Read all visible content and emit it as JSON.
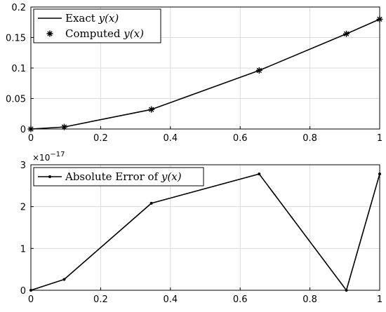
{
  "chart_data": [
    {
      "type": "line",
      "x": [
        0,
        0.0955,
        0.3455,
        0.6545,
        0.9045,
        1.0
      ],
      "series": [
        {
          "name": "Exact y(x)",
          "style": "line",
          "values": [
            0,
            0.0033,
            0.032,
            0.096,
            0.156,
            0.18
          ]
        },
        {
          "name": "Computed y(x)",
          "style": "star-markers",
          "values": [
            0,
            0.0033,
            0.032,
            0.096,
            0.156,
            0.18
          ]
        }
      ],
      "legend": [
        {
          "prefix": "Exact ",
          "var": "y(x)"
        },
        {
          "prefix": "Computed ",
          "var": "y(x)"
        }
      ],
      "xlim": [
        0,
        1
      ],
      "ylim": [
        0,
        0.2
      ],
      "xticks": [
        "0",
        "0.2",
        "0.4",
        "0.6",
        "0.8",
        "1"
      ],
      "yticks": [
        "0",
        "0.05",
        "0.1",
        "0.15",
        "0.2"
      ],
      "grid": true,
      "legend_position": "top-left"
    },
    {
      "type": "line",
      "x": [
        0,
        0.0955,
        0.3455,
        0.6545,
        0.9045,
        1.0
      ],
      "series": [
        {
          "name": "Absolute Error of y(x)",
          "style": "line-dot-markers",
          "values": [
            0,
            0.26,
            2.08,
            2.78,
            0,
            2.78
          ]
        }
      ],
      "legend": [
        {
          "prefix": "Absolute Error of ",
          "var": "y(x)"
        }
      ],
      "exponent_base": "×10",
      "exponent_power": "−17",
      "xlim": [
        0,
        1
      ],
      "ylim": [
        0,
        3
      ],
      "xticks": [
        "0",
        "0.2",
        "0.4",
        "0.6",
        "0.8",
        "1"
      ],
      "yticks": [
        "0",
        "1",
        "2",
        "3"
      ],
      "grid": true,
      "legend_position": "top-left"
    }
  ]
}
